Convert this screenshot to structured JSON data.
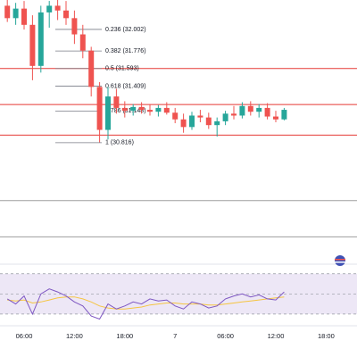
{
  "chart_data": [
    {
      "type": "candlestick",
      "categories": [
        null,
        null,
        "06:00",
        null,
        null,
        null,
        null,
        null,
        "12:00",
        null,
        null,
        null,
        null,
        null,
        "18:00",
        null,
        null,
        null,
        null,
        null,
        "7",
        null,
        null,
        null,
        null,
        null,
        "06:00",
        null,
        null,
        null,
        null,
        null,
        "12:00",
        null,
        null,
        null,
        null,
        null,
        "18:00"
      ],
      "open": [
        32.25,
        32.12,
        32.22,
        32.05,
        31.62,
        32.18,
        32.25,
        32.2,
        32.12,
        31.95,
        31.78,
        31.4,
        30.95,
        31.3,
        31.18,
        31.15,
        31.19,
        31.16,
        31.14,
        31.18,
        31.13,
        31.06,
        30.98,
        31.1,
        31.08,
        31.0,
        31.04,
        31.12,
        31.1,
        31.2,
        31.14,
        31.18,
        31.09,
        31.06,
        null,
        null,
        null,
        null,
        null
      ],
      "high": [
        32.31,
        32.28,
        32.3,
        32.15,
        32.25,
        32.3,
        32.31,
        32.3,
        32.2,
        32.05,
        31.82,
        31.45,
        31.4,
        31.38,
        31.25,
        31.22,
        31.24,
        31.22,
        31.21,
        31.24,
        31.18,
        31.12,
        31.14,
        31.16,
        31.13,
        31.08,
        31.15,
        31.2,
        31.24,
        31.25,
        31.22,
        31.23,
        31.15,
        31.18,
        null,
        null,
        null,
        null,
        null
      ],
      "low": [
        32.08,
        32.05,
        32.0,
        31.47,
        31.55,
        32.02,
        32.1,
        32.05,
        31.85,
        31.7,
        31.3,
        30.82,
        30.85,
        31.12,
        31.08,
        31.1,
        31.12,
        31.1,
        31.09,
        31.11,
        31.02,
        30.92,
        30.95,
        31.03,
        30.96,
        30.88,
        31.0,
        31.06,
        31.07,
        31.1,
        31.08,
        31.06,
        31.03,
        31.05,
        null,
        null,
        null,
        null,
        null
      ],
      "close": [
        32.12,
        32.22,
        32.05,
        31.62,
        32.18,
        32.25,
        32.2,
        32.12,
        31.95,
        31.78,
        31.4,
        30.95,
        31.3,
        31.18,
        31.15,
        31.19,
        31.16,
        31.14,
        31.18,
        31.13,
        31.06,
        30.98,
        31.1,
        31.08,
        31.0,
        31.04,
        31.12,
        31.1,
        31.2,
        31.14,
        31.18,
        31.09,
        31.06,
        31.16,
        null,
        null,
        null,
        null,
        null
      ],
      "up_color": "#26a69a",
      "down_color": "#ef5350",
      "ylim": [
        29.6,
        32.31
      ],
      "fib_color": "#787b86",
      "fib_levels": [
        {
          "value": 32.002,
          "label": "0.236 (32.002)"
        },
        {
          "value": 31.776,
          "label": "0.382 (31.776)"
        },
        {
          "value": 31.593,
          "label": "0.5 (31.593)"
        },
        {
          "value": 31.409,
          "label": "0.618 (31.409)"
        },
        {
          "value": 31.148,
          "label": "0.786 (31.148)"
        },
        {
          "value": 30.816,
          "label": "1 (30.816)"
        }
      ],
      "hlines": [
        {
          "value": 31.593,
          "color": "#e53935"
        },
        {
          "value": 31.215,
          "color": "#e53935"
        },
        {
          "value": 30.895,
          "color": "#e53935"
        },
        {
          "value": 30.21,
          "color": "#9e9e9e"
        },
        {
          "value": 29.83,
          "color": "#9e9e9e"
        }
      ]
    },
    {
      "type": "line",
      "values": [
        45,
        40,
        48,
        30,
        50,
        55,
        52,
        48,
        42,
        38,
        28,
        25,
        40,
        35,
        38,
        42,
        40,
        45,
        43,
        44,
        38,
        35,
        42,
        40,
        36,
        38,
        45,
        48,
        50,
        47,
        49,
        45,
        44,
        52,
        null,
        null,
        null,
        null,
        null
      ],
      "ma_values": [
        44,
        43,
        44,
        41,
        42,
        44,
        46,
        47,
        47,
        45,
        42,
        38,
        36,
        35,
        35,
        36,
        37,
        39,
        40,
        41,
        41,
        40,
        40,
        40,
        39,
        39,
        40,
        41,
        42,
        43,
        44,
        45,
        46,
        47,
        null,
        null,
        null,
        null,
        null
      ],
      "color": "#7e57c2",
      "ma_color": "#f5c542",
      "band_color": "#ede7f6",
      "ylim": [
        21,
        76
      ],
      "bands": [
        30,
        50,
        70
      ]
    }
  ]
}
